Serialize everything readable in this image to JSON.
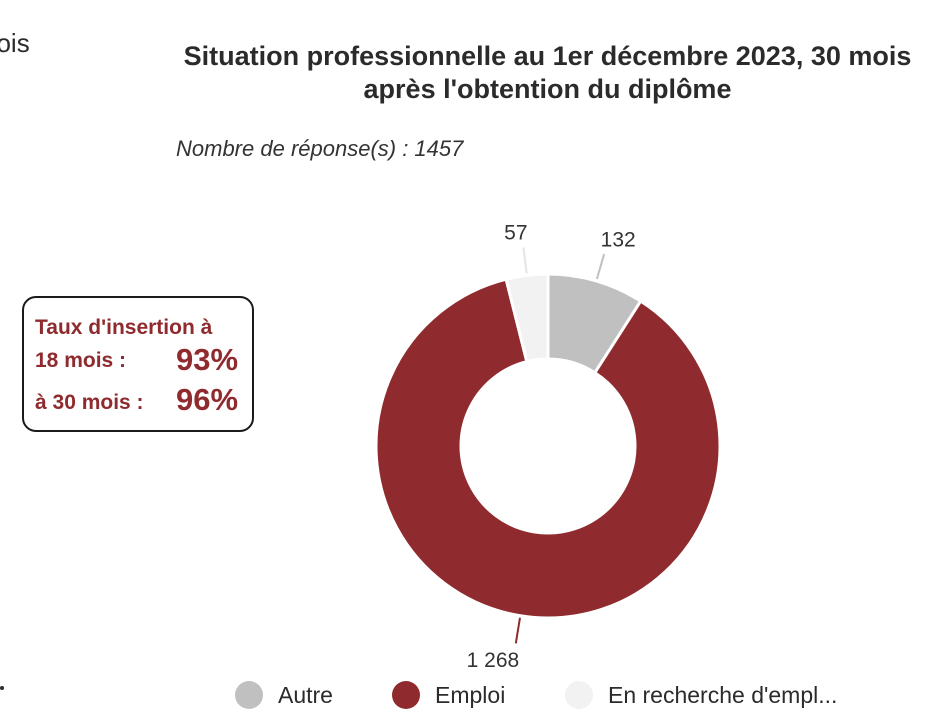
{
  "clipped_left_text": "nois",
  "chart_data": {
    "type": "pie",
    "title": "Situation professionnelle au 1er décembre 2023, 30 mois après l'obtention du diplôme",
    "subtitle": "Nombre de réponse(s) : 1457",
    "total": 1457,
    "categories": [
      "Autre",
      "Emploi",
      "En recherche d'empl..."
    ],
    "values": [
      132,
      1268,
      57
    ],
    "value_labels": [
      "132",
      "1 268",
      "57"
    ],
    "colors": [
      "#c0c0c0",
      "#8f2b2e",
      "#f2f2f2"
    ],
    "donut": true,
    "legend_position": "bottom"
  },
  "callout": {
    "line1": "Taux d'insertion  à",
    "label_18": "18 mois :",
    "value_18": "93%",
    "label_30": "à 30 mois :",
    "value_30": "96%",
    "color": "#8f2b2e"
  }
}
